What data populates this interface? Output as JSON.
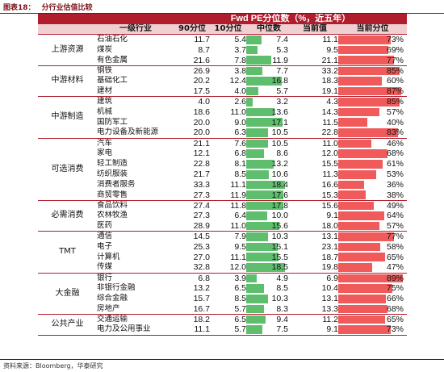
{
  "figure": {
    "label": "图表18：",
    "title": "分行业估值比较"
  },
  "table": {
    "title": "Fwd PE分位数（%，近五年）",
    "headers": {
      "group": "",
      "industry": "一级行业",
      "p90": "90分位",
      "p10": "10分位",
      "median": "中位数",
      "current": "当前值",
      "pct": "当前分位"
    },
    "colors": {
      "median_bar": "#5fbe6e",
      "pct_bar": "#f05a5a",
      "title_bg": "#b01e2e",
      "header_bg": "#f0cfd1"
    },
    "groups": [
      {
        "name": "上游资源",
        "rows": [
          {
            "industry": "石油石化",
            "p90": "11.7",
            "p10": "5.4",
            "median": "7.4",
            "current": "11.1",
            "pct": "73%"
          },
          {
            "industry": "煤炭",
            "p90": "8.7",
            "p10": "3.7",
            "median": "5.3",
            "current": "9.5",
            "pct": "69%"
          },
          {
            "industry": "有色金属",
            "p90": "21.6",
            "p10": "7.8",
            "median": "11.9",
            "current": "21.1",
            "pct": "77%"
          }
        ]
      },
      {
        "name": "中游材料",
        "rows": [
          {
            "industry": "钢铁",
            "p90": "26.9",
            "p10": "3.8",
            "median": "7.7",
            "current": "33.2",
            "pct": "85%"
          },
          {
            "industry": "基础化工",
            "p90": "20.2",
            "p10": "12.4",
            "median": "16.8",
            "current": "18.3",
            "pct": "60%"
          },
          {
            "industry": "建材",
            "p90": "17.5",
            "p10": "4.0",
            "median": "5.7",
            "current": "19.1",
            "pct": "87%"
          }
        ]
      },
      {
        "name": "中游制造",
        "rows": [
          {
            "industry": "建筑",
            "p90": "4.0",
            "p10": "2.6",
            "median": "3.2",
            "current": "4.3",
            "pct": "85%"
          },
          {
            "industry": "机械",
            "p90": "18.6",
            "p10": "11.0",
            "median": "13.6",
            "current": "14.3",
            "pct": "57%"
          },
          {
            "industry": "国防军工",
            "p90": "20.0",
            "p10": "9.0",
            "median": "17.1",
            "current": "11.5",
            "pct": "40%"
          },
          {
            "industry": "电力设备及新能源",
            "p90": "20.0",
            "p10": "6.3",
            "median": "10.5",
            "current": "22.8",
            "pct": "83%"
          }
        ]
      },
      {
        "name": "可选消费",
        "rows": [
          {
            "industry": "汽车",
            "p90": "21.1",
            "p10": "7.6",
            "median": "10.5",
            "current": "11.0",
            "pct": "46%"
          },
          {
            "industry": "家电",
            "p90": "12.1",
            "p10": "6.8",
            "median": "8.6",
            "current": "12.0",
            "pct": "68%"
          },
          {
            "industry": "轻工制造",
            "p90": "22.8",
            "p10": "8.1",
            "median": "13.2",
            "current": "15.5",
            "pct": "61%"
          },
          {
            "industry": "纺织服装",
            "p90": "21.7",
            "p10": "8.5",
            "median": "10.6",
            "current": "11.3",
            "pct": "53%"
          },
          {
            "industry": "消费者服务",
            "p90": "33.3",
            "p10": "11.1",
            "median": "18.4",
            "current": "16.6",
            "pct": "36%"
          },
          {
            "industry": "商贸零售",
            "p90": "27.3",
            "p10": "11.9",
            "median": "17.6",
            "current": "15.3",
            "pct": "38%"
          }
        ]
      },
      {
        "name": "必需消费",
        "rows": [
          {
            "industry": "食品饮料",
            "p90": "27.4",
            "p10": "11.8",
            "median": "17.8",
            "current": "15.6",
            "pct": "49%"
          },
          {
            "industry": "农林牧渔",
            "p90": "27.3",
            "p10": "6.4",
            "median": "10.0",
            "current": "9.1",
            "pct": "64%"
          },
          {
            "industry": "医药",
            "p90": "28.9",
            "p10": "11.0",
            "median": "15.6",
            "current": "18.0",
            "pct": "57%"
          }
        ]
      },
      {
        "name": "TMT",
        "rows": [
          {
            "industry": "通信",
            "p90": "14.5",
            "p10": "7.9",
            "median": "10.3",
            "current": "13.1",
            "pct": "77%"
          },
          {
            "industry": "电子",
            "p90": "25.3",
            "p10": "9.5",
            "median": "15.1",
            "current": "23.1",
            "pct": "58%"
          },
          {
            "industry": "计算机",
            "p90": "27.0",
            "p10": "11.1",
            "median": "15.5",
            "current": "18.7",
            "pct": "65%"
          },
          {
            "industry": "传媒",
            "p90": "32.8",
            "p10": "12.0",
            "median": "18.5",
            "current": "19.8",
            "pct": "47%"
          }
        ]
      },
      {
        "name": "大金融",
        "rows": [
          {
            "industry": "银行",
            "p90": "6.8",
            "p10": "3.9",
            "median": "4.9",
            "current": "6.9",
            "pct": "89%"
          },
          {
            "industry": "非银行金融",
            "p90": "13.2",
            "p10": "6.5",
            "median": "8.5",
            "current": "10.4",
            "pct": "75%"
          },
          {
            "industry": "综合金融",
            "p90": "15.7",
            "p10": "8.5",
            "median": "10.3",
            "current": "13.1",
            "pct": "66%"
          },
          {
            "industry": "房地产",
            "p90": "16.7",
            "p10": "5.7",
            "median": "8.3",
            "current": "13.3",
            "pct": "68%"
          }
        ]
      },
      {
        "name": "公共产业",
        "rows": [
          {
            "industry": "交通运输",
            "p90": "18.2",
            "p10": "6.5",
            "median": "9.4",
            "current": "11.2",
            "pct": "65%"
          },
          {
            "industry": "电力及公用事业",
            "p90": "11.1",
            "p10": "5.7",
            "median": "7.5",
            "current": "9.1",
            "pct": "73%"
          }
        ]
      }
    ]
  },
  "source": "资料来源：Bloomberg，华泰研究"
}
